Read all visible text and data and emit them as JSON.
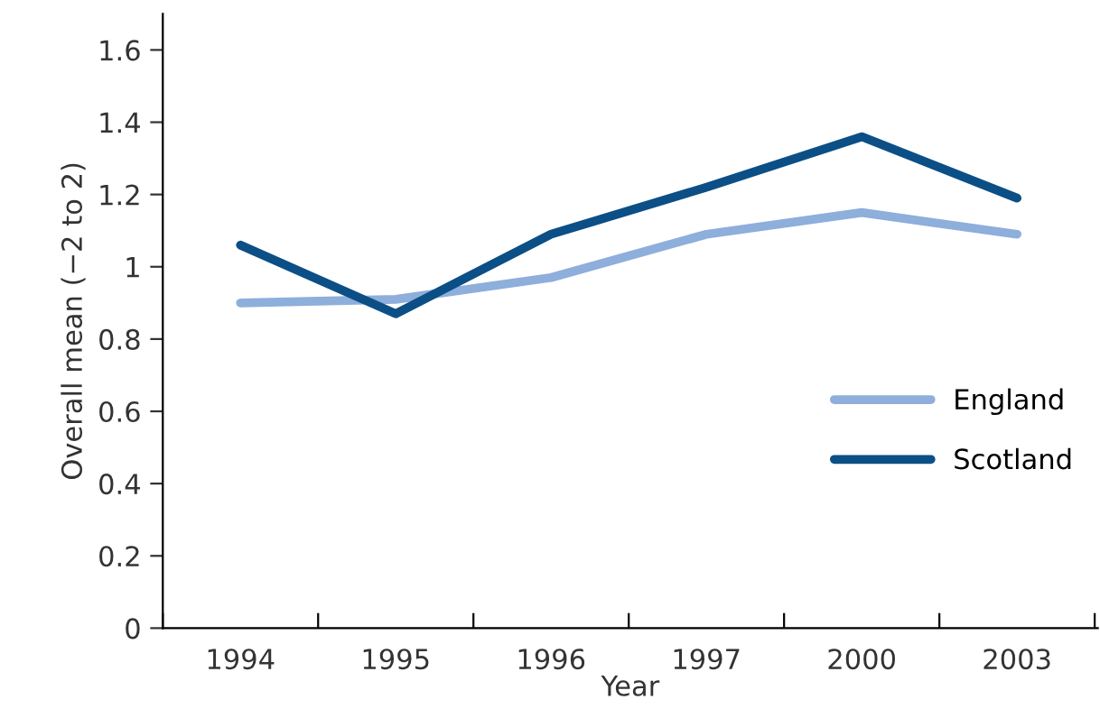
{
  "chart_data": {
    "type": "line",
    "xlabel": "Year",
    "ylabel": "Overall mean (−2 to 2)",
    "categories": [
      "1994",
      "1995",
      "1996",
      "1997",
      "2000",
      "2003"
    ],
    "series": [
      {
        "name": "England",
        "color": "#8eaedb",
        "values": [
          0.9,
          0.91,
          0.97,
          1.09,
          1.15,
          1.09
        ]
      },
      {
        "name": "Scotland",
        "color": "#0b4f86",
        "values": [
          1.06,
          0.87,
          1.09,
          1.22,
          1.36,
          1.19
        ]
      }
    ],
    "ylim": [
      0,
      1.7
    ],
    "yticks": [
      0,
      0.2,
      0.4,
      0.6,
      0.8,
      1,
      1.2,
      1.4,
      1.6
    ],
    "grid": false,
    "legend": "right",
    "marker": "none",
    "line_style": "solid"
  }
}
